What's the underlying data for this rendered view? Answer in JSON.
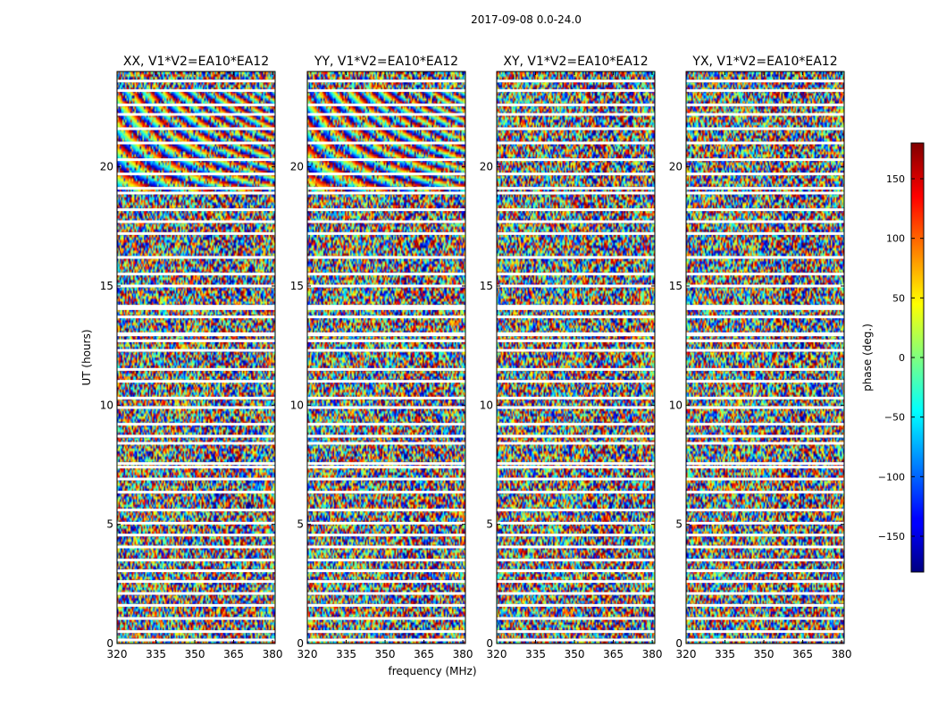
{
  "chart_data": {
    "type": "heatmap",
    "title": "2017-09-08 0.0-24.0",
    "xlabel": "frequency (MHz)",
    "ylabel": "UT (hours)",
    "xlim": [
      320,
      381
    ],
    "ylim": [
      0,
      24
    ],
    "xticks": [
      320,
      335,
      350,
      365,
      380
    ],
    "yticks": [
      0,
      5,
      10,
      15,
      20
    ],
    "panels": [
      {
        "title": "XX, V1*V2=EA10*EA12",
        "polarization": "XX"
      },
      {
        "title": "YY, V1*V2=EA10*EA12",
        "polarization": "YY"
      },
      {
        "title": "XY, V1*V2=EA10*EA12",
        "polarization": "XY"
      },
      {
        "title": "YX, V1*V2=EA10*EA12",
        "polarization": "YX"
      }
    ],
    "colorbar": {
      "label": "phase (deg.)",
      "range": [
        -180,
        180
      ],
      "ticks": [
        -150,
        -100,
        -50,
        0,
        50,
        100,
        150
      ],
      "tick_labels": [
        "−150",
        "−100",
        "−50",
        "0",
        "50",
        "100",
        "150"
      ],
      "colormap": "jet"
    },
    "flagged_ut_hours": [
      0.15,
      0.5,
      1.05,
      1.6,
      2.1,
      2.6,
      3.05,
      3.5,
      4.05,
      4.55,
      5.05,
      5.6,
      6.35,
      6.9,
      7.4,
      7.55,
      8.4,
      8.7,
      9.2,
      9.9,
      10.3,
      11.0,
      11.5,
      12.3,
      12.7,
      12.95,
      13.0,
      13.7,
      14.05,
      14.15,
      15.0,
      15.5,
      16.2,
      17.2,
      17.7,
      18.2,
      18.9,
      19.1,
      19.7,
      20.3,
      21.0,
      21.6,
      22.2,
      22.6,
      23.2,
      23.6
    ]
  }
}
